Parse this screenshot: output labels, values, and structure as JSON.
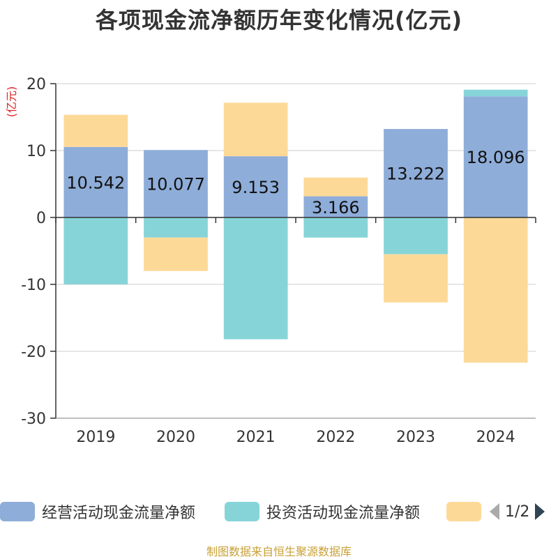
{
  "colors": {
    "operating": "#8eadd9",
    "investing": "#86d4d8",
    "financing": "#fdd998",
    "footer": "#c9a036",
    "unit": "#dd2222"
  },
  "legend": {
    "items": [
      {
        "label": "经营活动现金流量净额",
        "color": "#8eadd9"
      },
      {
        "label": "投资活动现金流量净额",
        "color": "#86d4d8"
      },
      {
        "label": "",
        "color": "#fdd998"
      }
    ],
    "page_text": "1/2",
    "prev_icon": "triangle-left-icon",
    "next_icon": "triangle-right-icon"
  },
  "footer": "制图数据来自恒生聚源数据库",
  "chart_data": {
    "type": "bar",
    "stacked": true,
    "title": "各项现金流净额历年变化情况(亿元)",
    "unit_label": "(亿元)",
    "categories": [
      "2019",
      "2020",
      "2021",
      "2022",
      "2023",
      "2024"
    ],
    "ylim": [
      -30,
      20
    ],
    "yticks": [
      20,
      10,
      0,
      -10,
      -20,
      -30
    ],
    "grid": true,
    "series": [
      {
        "name": "经营活动现金流量净额",
        "values": [
          10.542,
          10.077,
          9.153,
          3.166,
          13.222,
          18.096
        ],
        "data_labels": [
          "10.542",
          "10.077",
          "9.153",
          "3.166",
          "13.222",
          "18.096"
        ]
      },
      {
        "name": "投资活动现金流量净额",
        "values": [
          -10.0,
          -3.0,
          -18.2,
          -3.0,
          -5.5,
          1.0
        ]
      },
      {
        "name": "",
        "values": [
          4.8,
          -5.0,
          8.0,
          2.8,
          -7.2,
          -21.7
        ]
      }
    ]
  }
}
